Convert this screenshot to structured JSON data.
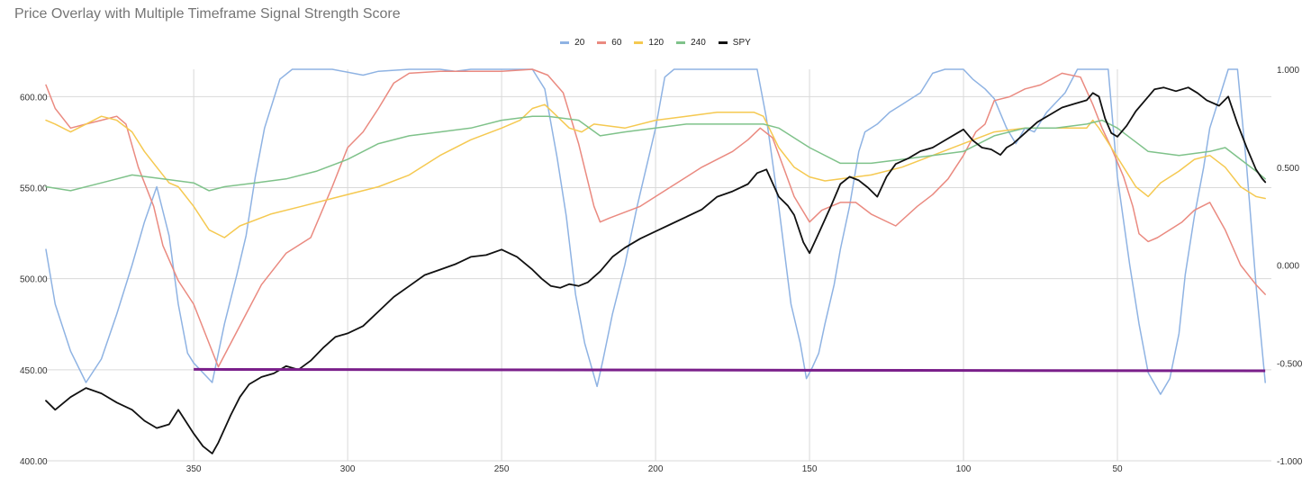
{
  "chart_data": {
    "type": "line",
    "title": "Price Overlay with Multiple Timeframe Signal Strength Score",
    "legend_position": "top-center",
    "grid": true,
    "x_axis": {
      "reversed": true,
      "range": [
        398,
        0
      ],
      "ticks": [
        350,
        300,
        250,
        200,
        150,
        100,
        50
      ],
      "tick_labels": [
        "350",
        "300",
        "250",
        "200",
        "150",
        "100",
        "50"
      ]
    },
    "y_left": {
      "range": [
        400,
        615
      ],
      "ticks": [
        400,
        450,
        500,
        550,
        600
      ],
      "tick_labels": [
        "400.00",
        "450.00",
        "500.00",
        "550.00",
        "600.00"
      ]
    },
    "y_right": {
      "range": [
        -1,
        1
      ],
      "ticks": [
        -1,
        -0.5,
        0,
        0.5,
        1
      ],
      "tick_labels": [
        "-1.000",
        "-0.500",
        "0.000",
        "0.500",
        "1.000"
      ]
    },
    "series": [
      {
        "name": "20",
        "color": "#8fb3e3",
        "axis": "right",
        "x": [
          398,
          395,
          390,
          385,
          380,
          375,
          370,
          366,
          362,
          358,
          355,
          352,
          350,
          347,
          344,
          340,
          336,
          333,
          330,
          327,
          322,
          318,
          315,
          310,
          305,
          295,
          290,
          280,
          270,
          265,
          260,
          250,
          245,
          240,
          238,
          236,
          232,
          229,
          226,
          223,
          219,
          217,
          214,
          210,
          206,
          200,
          197,
          194,
          190,
          187,
          183,
          180,
          177,
          173,
          170,
          167,
          164,
          160,
          156,
          153,
          151,
          149,
          147,
          145,
          142,
          140,
          137,
          134,
          132,
          128,
          124,
          120,
          114,
          110,
          106,
          103,
          100,
          97,
          93,
          90,
          86,
          83,
          80,
          77,
          73,
          70,
          67,
          63,
          60,
          56,
          53,
          50,
          46,
          43,
          40,
          36,
          33,
          30,
          28,
          25,
          22,
          20,
          17,
          14,
          11,
          8,
          5,
          2
        ],
        "y": [
          0.08,
          -0.2,
          -0.44,
          -0.6,
          -0.48,
          -0.25,
          0.0,
          0.22,
          0.4,
          0.15,
          -0.2,
          -0.45,
          -0.5,
          -0.55,
          -0.6,
          -0.3,
          -0.05,
          0.15,
          0.45,
          0.7,
          0.95,
          1.0,
          1.0,
          1.0,
          1.0,
          0.97,
          0.99,
          1.0,
          1.0,
          0.99,
          1.0,
          1.0,
          1.0,
          1.0,
          0.95,
          0.9,
          0.55,
          0.25,
          -0.15,
          -0.4,
          -0.62,
          -0.48,
          -0.25,
          0.0,
          0.3,
          0.7,
          0.96,
          1.0,
          1.0,
          1.0,
          1.0,
          1.0,
          1.0,
          1.0,
          1.0,
          1.0,
          0.75,
          0.3,
          -0.2,
          -0.4,
          -0.58,
          -0.52,
          -0.45,
          -0.3,
          -0.1,
          0.08,
          0.3,
          0.58,
          0.68,
          0.72,
          0.78,
          0.82,
          0.88,
          0.98,
          1.0,
          1.0,
          1.0,
          0.95,
          0.9,
          0.85,
          0.7,
          0.62,
          0.7,
          0.68,
          0.78,
          0.83,
          0.88,
          1.0,
          1.0,
          1.0,
          1.0,
          0.45,
          0.0,
          -0.3,
          -0.55,
          -0.66,
          -0.58,
          -0.35,
          -0.05,
          0.25,
          0.5,
          0.7,
          0.85,
          1.0,
          1.0,
          0.5,
          -0.1,
          -0.6
        ]
      },
      {
        "name": "60",
        "color": "#ea8a80",
        "axis": "right",
        "x": [
          398,
          395,
          390,
          385,
          380,
          375,
          372,
          368,
          363,
          360,
          355,
          350,
          345,
          342,
          338,
          333,
          328,
          320,
          312,
          305,
          300,
          295,
          290,
          285,
          280,
          270,
          260,
          250,
          240,
          235,
          230,
          225,
          220,
          218,
          215,
          205,
          195,
          185,
          175,
          170,
          166,
          162,
          158,
          155,
          150,
          146,
          140,
          135,
          130,
          122,
          115,
          110,
          105,
          100,
          96,
          93,
          90,
          85,
          80,
          75,
          68,
          62,
          58,
          55,
          52,
          48,
          45,
          43,
          40,
          37,
          33,
          29,
          25,
          20,
          15,
          10,
          5,
          2
        ],
        "y": [
          0.92,
          0.8,
          0.7,
          0.72,
          0.74,
          0.76,
          0.72,
          0.5,
          0.3,
          0.1,
          -0.08,
          -0.2,
          -0.4,
          -0.52,
          -0.4,
          -0.25,
          -0.1,
          0.06,
          0.14,
          0.4,
          0.6,
          0.68,
          0.8,
          0.93,
          0.98,
          0.99,
          0.99,
          0.99,
          1.0,
          0.97,
          0.88,
          0.62,
          0.3,
          0.22,
          0.24,
          0.3,
          0.4,
          0.5,
          0.58,
          0.64,
          0.7,
          0.65,
          0.48,
          0.35,
          0.22,
          0.28,
          0.32,
          0.32,
          0.26,
          0.2,
          0.3,
          0.36,
          0.44,
          0.56,
          0.68,
          0.72,
          0.84,
          0.86,
          0.9,
          0.92,
          0.98,
          0.96,
          0.82,
          0.7,
          0.6,
          0.45,
          0.3,
          0.16,
          0.12,
          0.14,
          0.18,
          0.22,
          0.28,
          0.32,
          0.18,
          0.0,
          -0.1,
          -0.15
        ]
      },
      {
        "name": "120",
        "color": "#f5c951",
        "axis": "right",
        "x": [
          398,
          395,
          390,
          385,
          380,
          375,
          370,
          366,
          362,
          358,
          355,
          350,
          345,
          340,
          335,
          325,
          315,
          305,
          290,
          280,
          270,
          260,
          250,
          244,
          240,
          236,
          232,
          228,
          224,
          220,
          210,
          200,
          190,
          180,
          168,
          165,
          160,
          155,
          150,
          145,
          140,
          130,
          120,
          110,
          100,
          90,
          80,
          70,
          60,
          58,
          56,
          52,
          48,
          44,
          40,
          36,
          30,
          25,
          20,
          15,
          10,
          5,
          2
        ],
        "y": [
          0.74,
          0.72,
          0.68,
          0.72,
          0.76,
          0.74,
          0.68,
          0.58,
          0.5,
          0.42,
          0.4,
          0.3,
          0.18,
          0.14,
          0.2,
          0.26,
          0.3,
          0.34,
          0.4,
          0.46,
          0.56,
          0.64,
          0.7,
          0.74,
          0.8,
          0.82,
          0.76,
          0.7,
          0.68,
          0.72,
          0.7,
          0.74,
          0.76,
          0.78,
          0.78,
          0.76,
          0.6,
          0.5,
          0.45,
          0.43,
          0.44,
          0.46,
          0.5,
          0.56,
          0.62,
          0.68,
          0.7,
          0.7,
          0.7,
          0.74,
          0.7,
          0.6,
          0.5,
          0.4,
          0.35,
          0.42,
          0.48,
          0.54,
          0.56,
          0.5,
          0.4,
          0.35,
          0.34
        ]
      },
      {
        "name": "240",
        "color": "#7fc28a",
        "axis": "right",
        "x": [
          398,
          390,
          380,
          370,
          360,
          350,
          345,
          340,
          330,
          320,
          310,
          300,
          290,
          280,
          270,
          260,
          250,
          240,
          235,
          225,
          218,
          210,
          200,
          190,
          180,
          170,
          165,
          160,
          150,
          140,
          130,
          120,
          110,
          100,
          90,
          80,
          70,
          60,
          55,
          50,
          45,
          40,
          30,
          20,
          15,
          10,
          5,
          2
        ],
        "y": [
          0.4,
          0.38,
          0.42,
          0.46,
          0.44,
          0.42,
          0.38,
          0.4,
          0.42,
          0.44,
          0.48,
          0.54,
          0.62,
          0.66,
          0.68,
          0.7,
          0.74,
          0.76,
          0.76,
          0.74,
          0.66,
          0.68,
          0.7,
          0.72,
          0.72,
          0.72,
          0.72,
          0.7,
          0.6,
          0.52,
          0.52,
          0.54,
          0.56,
          0.58,
          0.66,
          0.7,
          0.7,
          0.72,
          0.74,
          0.7,
          0.64,
          0.58,
          0.56,
          0.58,
          0.6,
          0.54,
          0.48,
          0.44
        ]
      },
      {
        "name": "SPY",
        "color": "#111111",
        "axis": "left",
        "x": [
          398,
          395,
          390,
          385,
          380,
          375,
          370,
          366,
          362,
          358,
          355,
          350,
          347,
          344,
          342,
          338,
          335,
          332,
          328,
          324,
          320,
          316,
          312,
          308,
          304,
          300,
          295,
          290,
          285,
          280,
          275,
          270,
          265,
          260,
          255,
          250,
          245,
          240,
          237,
          234,
          231,
          228,
          225,
          222,
          218,
          214,
          210,
          205,
          200,
          195,
          190,
          185,
          180,
          175,
          170,
          167,
          164,
          160,
          157,
          155,
          152,
          150,
          147,
          143,
          140,
          137,
          134,
          131,
          128,
          125,
          122,
          118,
          114,
          110,
          106,
          102,
          100,
          97,
          94,
          91,
          88,
          86,
          84,
          80,
          76,
          72,
          68,
          64,
          60,
          58,
          56,
          54,
          52,
          50,
          47,
          44,
          41,
          38,
          35,
          31,
          27,
          24,
          21,
          17,
          14,
          11,
          8,
          5,
          3,
          2
        ],
        "y": [
          433,
          428,
          435,
          440,
          437,
          432,
          428,
          422,
          418,
          420,
          428,
          415,
          408,
          404,
          410,
          425,
          435,
          442,
          446,
          448,
          452,
          450,
          455,
          462,
          468,
          470,
          474,
          482,
          490,
          496,
          502,
          505,
          508,
          512,
          513,
          516,
          512,
          505,
          500,
          496,
          495,
          497,
          496,
          498,
          504,
          512,
          517,
          522,
          526,
          530,
          534,
          538,
          545,
          548,
          552,
          558,
          560,
          545,
          540,
          535,
          520,
          514,
          525,
          540,
          552,
          556,
          554,
          550,
          545,
          556,
          563,
          566,
          570,
          572,
          576,
          580,
          582,
          576,
          572,
          571,
          568,
          572,
          574,
          580,
          586,
          590,
          594,
          596,
          598,
          602,
          600,
          588,
          580,
          578,
          584,
          592,
          598,
          604,
          605,
          603,
          605,
          602,
          598,
          595,
          600,
          585,
          572,
          560,
          555,
          553
        ]
      }
    ],
    "reference_line": {
      "color": "#7a1f8a",
      "axis": "left",
      "x": [
        350,
        2
      ],
      "y": [
        450.2,
        449.4
      ]
    }
  }
}
